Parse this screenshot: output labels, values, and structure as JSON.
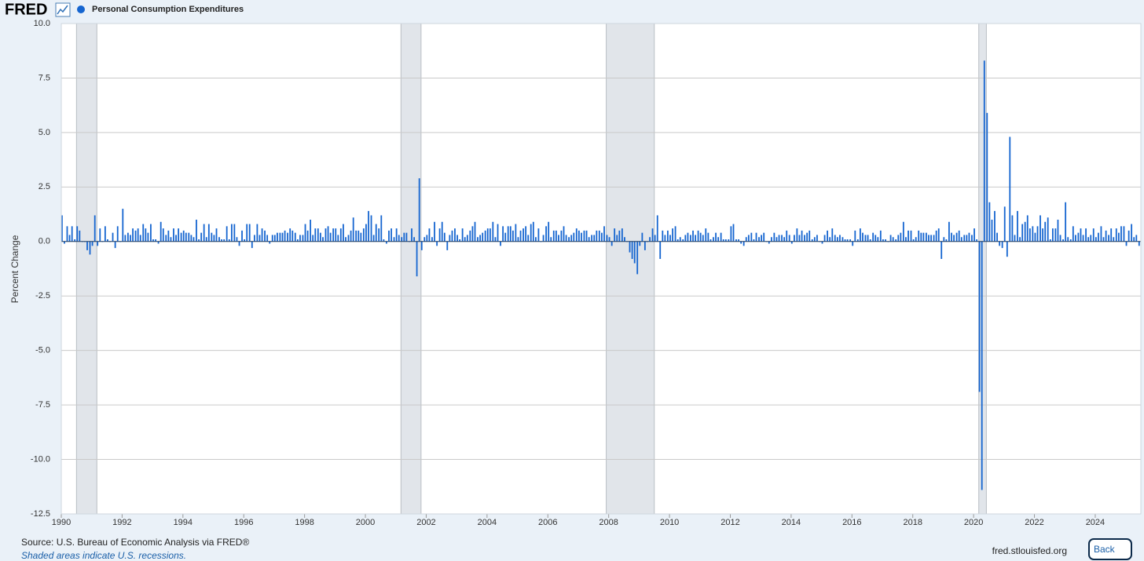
{
  "header": {
    "logo": "FRED"
  },
  "footer": {
    "site": "fred.stlouisfed.org",
    "button": "Back"
  },
  "chart_data": {
    "type": "bar",
    "series": [
      {
        "name": "Personal Consumption Expenditures",
        "color": "#1565d0",
        "values": [
          1.2,
          -0.1,
          0.7,
          0.3,
          0.7,
          0.1,
          0.7,
          0.5,
          0.0,
          0.0,
          -0.4,
          -0.6,
          -0.2,
          1.2,
          -0.2,
          0.6,
          0.0,
          0.7,
          0.1,
          0.0,
          0.4,
          -0.3,
          0.7,
          0.0,
          1.5,
          0.3,
          0.4,
          0.3,
          0.6,
          0.5,
          0.6,
          0.3,
          0.8,
          0.6,
          0.4,
          0.8,
          0.1,
          0.1,
          -0.1,
          0.9,
          0.6,
          0.3,
          0.5,
          0.2,
          0.6,
          0.3,
          0.6,
          0.4,
          0.5,
          0.4,
          0.4,
          0.3,
          0.2,
          1.0,
          0.1,
          0.4,
          0.8,
          0.2,
          0.8,
          0.4,
          0.3,
          0.6,
          0.2,
          0.1,
          0.1,
          0.7,
          0.1,
          0.8,
          0.8,
          0.2,
          -0.2,
          0.5,
          0.1,
          0.8,
          0.8,
          -0.3,
          0.3,
          0.8,
          0.3,
          0.6,
          0.5,
          0.3,
          -0.1,
          0.3,
          0.3,
          0.4,
          0.4,
          0.4,
          0.5,
          0.4,
          0.6,
          0.5,
          0.4,
          0.1,
          0.3,
          0.3,
          0.8,
          0.5,
          1.0,
          0.3,
          0.6,
          0.6,
          0.4,
          0.2,
          0.6,
          0.7,
          0.4,
          0.6,
          0.6,
          0.3,
          0.6,
          0.8,
          0.2,
          0.3,
          0.5,
          1.1,
          0.5,
          0.5,
          0.4,
          0.6,
          0.8,
          1.4,
          1.2,
          0.3,
          0.8,
          0.6,
          1.2,
          0.1,
          -0.1,
          0.5,
          0.6,
          0.2,
          0.6,
          0.3,
          0.2,
          0.4,
          0.4,
          0.0,
          0.6,
          0.2,
          -1.6,
          2.9,
          -0.4,
          0.2,
          0.3,
          0.6,
          0.2,
          0.9,
          -0.2,
          0.6,
          0.9,
          0.4,
          -0.4,
          0.3,
          0.5,
          0.6,
          0.3,
          0.1,
          0.6,
          0.2,
          0.3,
          0.5,
          0.7,
          0.9,
          0.2,
          0.3,
          0.4,
          0.5,
          0.6,
          0.6,
          0.9,
          0.2,
          0.8,
          -0.2,
          0.7,
          0.4,
          0.7,
          0.7,
          0.5,
          0.8,
          0.2,
          0.5,
          0.6,
          0.7,
          0.3,
          0.8,
          0.9,
          0.2,
          0.6,
          0.0,
          0.3,
          0.7,
          0.9,
          0.2,
          0.5,
          0.5,
          0.3,
          0.5,
          0.7,
          0.3,
          0.2,
          0.3,
          0.4,
          0.6,
          0.5,
          0.4,
          0.5,
          0.5,
          0.2,
          0.3,
          0.3,
          0.5,
          0.5,
          0.4,
          0.7,
          0.3,
          0.2,
          -0.2,
          0.6,
          0.3,
          0.5,
          0.6,
          0.2,
          0.0,
          -0.5,
          -0.8,
          -1.0,
          -1.5,
          -0.2,
          0.4,
          -0.4,
          0.0,
          0.2,
          0.6,
          0.3,
          1.2,
          -0.8,
          0.5,
          0.3,
          0.5,
          0.3,
          0.6,
          0.7,
          0.1,
          0.2,
          0.1,
          0.3,
          0.4,
          0.3,
          0.5,
          0.3,
          0.5,
          0.4,
          0.3,
          0.6,
          0.4,
          0.1,
          0.2,
          0.4,
          0.2,
          0.4,
          0.1,
          0.1,
          0.1,
          0.7,
          0.8,
          0.1,
          0.1,
          -0.1,
          -0.2,
          0.2,
          0.3,
          0.4,
          0.1,
          0.4,
          0.2,
          0.3,
          0.4,
          0.0,
          -0.1,
          0.2,
          0.4,
          0.2,
          0.3,
          0.3,
          0.2,
          0.5,
          0.3,
          -0.1,
          0.3,
          0.6,
          0.3,
          0.5,
          0.3,
          0.4,
          0.5,
          0.1,
          0.2,
          0.3,
          0.0,
          -0.1,
          0.3,
          0.5,
          0.2,
          0.6,
          0.3,
          0.2,
          0.3,
          0.2,
          0.1,
          0.1,
          0.1,
          -0.2,
          0.5,
          0.1,
          0.6,
          0.4,
          0.3,
          0.3,
          0.1,
          0.4,
          0.3,
          0.2,
          0.5,
          0.1,
          0.1,
          0.0,
          0.3,
          0.2,
          0.1,
          0.3,
          0.4,
          0.9,
          0.2,
          0.5,
          0.5,
          0.1,
          0.2,
          0.5,
          0.4,
          0.4,
          0.4,
          0.3,
          0.3,
          0.3,
          0.5,
          0.6,
          -0.8,
          0.2,
          0.1,
          0.9,
          0.4,
          0.3,
          0.4,
          0.5,
          0.2,
          0.3,
          0.3,
          0.4,
          0.3,
          0.6,
          0.1,
          -6.9,
          -11.4,
          8.3,
          5.9,
          1.8,
          1.0,
          1.4,
          0.4,
          -0.2,
          -0.3,
          1.6,
          -0.7,
          4.8,
          1.2,
          0.3,
          1.4,
          0.2,
          0.8,
          0.9,
          1.2,
          0.6,
          0.7,
          0.4,
          0.7,
          1.2,
          0.6,
          0.9,
          1.1,
          0.1,
          0.6,
          0.6,
          1.0,
          0.3,
          0.1,
          1.8,
          0.2,
          0.1,
          0.7,
          0.3,
          0.4,
          0.6,
          0.3,
          0.6,
          0.2,
          0.3,
          0.6,
          0.2,
          0.4,
          0.7,
          0.2,
          0.5,
          0.3,
          0.6,
          0.2,
          0.6,
          0.4,
          0.7,
          0.7,
          -0.2,
          0.5,
          0.8,
          0.2,
          0.3,
          -0.2
        ]
      }
    ],
    "x": [
      1990,
      1990.08,
      1990.17,
      1990.25,
      1990.33,
      1990.42,
      1990.5,
      1990.58,
      1990.67,
      1990.75,
      1990.83,
      1990.92,
      1991,
      1991.08,
      1991.17,
      1991.25,
      1991.33,
      1991.42,
      1991.5,
      1991.58,
      1991.67,
      1991.75,
      1991.83,
      1991.92,
      1992,
      1992.08,
      1992.17,
      1992.25,
      1992.33,
      1992.42,
      1992.5,
      1992.58,
      1992.67,
      1992.75,
      1992.83,
      1992.92,
      1993,
      1993.08,
      1993.17,
      1993.25,
      1993.33,
      1993.42,
      1993.5,
      1993.58,
      1993.67,
      1993.75,
      1993.83,
      1993.92,
      1994,
      1994.08,
      1994.17,
      1994.25,
      1994.33,
      1994.42,
      1994.5,
      1994.58,
      1994.67,
      1994.75,
      1994.83,
      1994.92,
      1995,
      1995.08,
      1995.17,
      1995.25,
      1995.33,
      1995.42,
      1995.5,
      1995.58,
      1995.67,
      1995.75,
      1995.83,
      1995.92,
      1996,
      1996.08,
      1996.17,
      1996.25,
      1996.33,
      1996.42,
      1996.5,
      1996.58,
      1996.67,
      1996.75,
      1996.83,
      1996.92,
      1997,
      1997.08,
      1997.17,
      1997.25,
      1997.33,
      1997.42,
      1997.5,
      1997.58,
      1997.67,
      1997.75,
      1997.83,
      1997.92,
      1998,
      1998.08,
      1998.17,
      1998.25,
      1998.33,
      1998.42,
      1998.5,
      1998.58,
      1998.67,
      1998.75,
      1998.83,
      1998.92,
      1999,
      1999.08,
      1999.17,
      1999.25,
      1999.33,
      1999.42,
      1999.5,
      1999.58,
      1999.67,
      1999.75,
      1999.83,
      1999.92,
      2000,
      2000.08,
      2000.17,
      2000.25,
      2000.33,
      2000.42,
      2000.5,
      2000.58,
      2000.67,
      2000.75,
      2000.83,
      2000.92,
      2001,
      2001.08,
      2001.17,
      2001.25,
      2001.33,
      2001.42,
      2001.5,
      2001.58,
      2001.67,
      2001.75,
      2001.83,
      2001.92,
      2002,
      2002.08,
      2002.17,
      2002.25,
      2002.33,
      2002.42,
      2002.5,
      2002.58,
      2002.67,
      2002.75,
      2002.83,
      2002.92,
      2003,
      2003.08,
      2003.17,
      2003.25,
      2003.33,
      2003.42,
      2003.5,
      2003.58,
      2003.67,
      2003.75,
      2003.83,
      2003.92,
      2004,
      2004.08,
      2004.17,
      2004.25,
      2004.33,
      2004.42,
      2004.5,
      2004.58,
      2004.67,
      2004.75,
      2004.83,
      2004.92,
      2005,
      2005.08,
      2005.17,
      2005.25,
      2005.33,
      2005.42,
      2005.5,
      2005.58,
      2005.67,
      2005.75,
      2005.83,
      2005.92,
      2006,
      2006.08,
      2006.17,
      2006.25,
      2006.33,
      2006.42,
      2006.5,
      2006.58,
      2006.67,
      2006.75,
      2006.83,
      2006.92,
      2007,
      2007.08,
      2007.17,
      2007.25,
      2007.33,
      2007.42,
      2007.5,
      2007.58,
      2007.67,
      2007.75,
      2007.83,
      2007.92,
      2008,
      2008.08,
      2008.17,
      2008.25,
      2008.33,
      2008.42,
      2008.5,
      2008.58,
      2008.67,
      2008.75,
      2008.83,
      2008.92,
      2009,
      2009.08,
      2009.17,
      2009.25,
      2009.33,
      2009.42,
      2009.5,
      2009.58,
      2009.67,
      2009.75,
      2009.83,
      2009.92,
      2010,
      2010.08,
      2010.17,
      2010.25,
      2010.33,
      2010.42,
      2010.5,
      2010.58,
      2010.67,
      2010.75,
      2010.83,
      2010.92,
      2011,
      2011.08,
      2011.17,
      2011.25,
      2011.33,
      2011.42,
      2011.5,
      2011.58,
      2011.67,
      2011.75,
      2011.83,
      2011.92,
      2012,
      2012.08,
      2012.17,
      2012.25,
      2012.33,
      2012.42,
      2012.5,
      2012.58,
      2012.67,
      2012.75,
      2012.83,
      2012.92,
      2013,
      2013.08,
      2013.17,
      2013.25,
      2013.33,
      2013.42,
      2013.5,
      2013.58,
      2013.67,
      2013.75,
      2013.83,
      2013.92,
      2014,
      2014.08,
      2014.17,
      2014.25,
      2014.33,
      2014.42,
      2014.5,
      2014.58,
      2014.67,
      2014.75,
      2014.83,
      2014.92,
      2015,
      2015.08,
      2015.17,
      2015.25,
      2015.33,
      2015.42,
      2015.5,
      2015.58,
      2015.67,
      2015.75,
      2015.83,
      2015.92,
      2016,
      2016.08,
      2016.17,
      2016.25,
      2016.33,
      2016.42,
      2016.5,
      2016.58,
      2016.67,
      2016.75,
      2016.83,
      2016.92,
      2017,
      2017.08,
      2017.17,
      2017.25,
      2017.33,
      2017.42,
      2017.5,
      2017.58,
      2017.67,
      2017.75,
      2017.83,
      2017.92,
      2018,
      2018.08,
      2018.17,
      2018.25,
      2018.33,
      2018.42,
      2018.5,
      2018.58,
      2018.67,
      2018.75,
      2018.83,
      2018.92,
      2019,
      2019.08,
      2019.17,
      2019.25,
      2019.33,
      2019.42,
      2019.5,
      2019.58,
      2019.67,
      2019.75,
      2019.83,
      2019.92,
      2020,
      2020.08,
      2020.17,
      2020.25,
      2020.33,
      2020.42,
      2020.5,
      2020.58,
      2020.67,
      2020.75,
      2020.83,
      2020.92,
      2021,
      2021.08,
      2021.17,
      2021.25,
      2021.33,
      2021.42,
      2021.5,
      2021.58,
      2021.67,
      2021.75,
      2021.83,
      2021.92,
      2022,
      2022.08,
      2022.17,
      2022.25,
      2022.33,
      2022.42,
      2022.5,
      2022.58,
      2022.67,
      2022.75,
      2022.83,
      2022.92,
      2023,
      2023.08,
      2023.17,
      2023.25,
      2023.33,
      2023.42,
      2023.5,
      2023.58,
      2023.67,
      2023.75,
      2023.83,
      2023.92,
      2024,
      2024.08,
      2024.17,
      2024.25,
      2024.33,
      2024.42,
      2024.5,
      2024.58,
      2024.67,
      2024.75,
      2024.83,
      2024.92,
      2025,
      2025.08,
      2025.17,
      2025.25,
      2025.33,
      2025.42
    ],
    "xlim": [
      1990,
      2025.5
    ],
    "xticks": [
      1990,
      1992,
      1994,
      1996,
      1998,
      2000,
      2002,
      2004,
      2006,
      2008,
      2010,
      2012,
      2014,
      2016,
      2018,
      2020,
      2022,
      2024
    ],
    "ylim": [
      -12.5,
      10
    ],
    "yticks": [
      {
        "value": 10,
        "label": "10.0"
      },
      7.5,
      {
        "value": 5,
        "label": "5.0"
      },
      2.5,
      {
        "value": 0,
        "label": "0.0"
      },
      -2.5,
      {
        "value": -5,
        "label": "-5.0"
      },
      -7.5,
      {
        "value": -10,
        "label": "-10.0"
      },
      -12.5
    ],
    "ylabel": "Percent Change",
    "grid": true,
    "recessions": [
      [
        1990.5,
        1991.17
      ],
      [
        2001.17,
        2001.83
      ],
      [
        2007.92,
        2009.5
      ],
      [
        2020.17,
        2020.42
      ]
    ],
    "recession_color": "#e1e5ea",
    "source": "Source: U.S. Bureau of Economic Analysis via FRED®",
    "note": "Shaded areas indicate U.S. recessions."
  }
}
